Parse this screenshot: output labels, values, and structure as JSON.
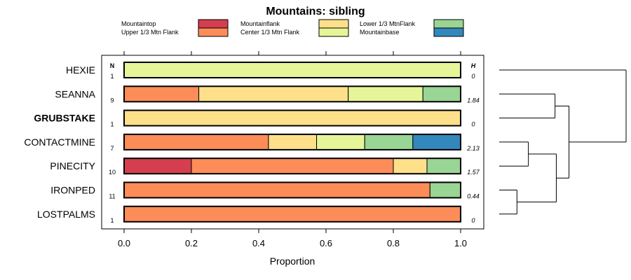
{
  "chart_data": {
    "type": "bar",
    "stacked": true,
    "orientation": "horizontal",
    "title": "Mountains: sibling",
    "xlabel": "Proportion",
    "ylabel": "",
    "xlim": [
      0,
      1
    ],
    "x_ticks": [
      "0.0",
      "0.2",
      "0.4",
      "0.6",
      "0.8",
      "1.0"
    ],
    "legend_position": "top",
    "legend_columns": [
      [
        "Mountaintop",
        "Upper 1/3 Mtn Flank"
      ],
      [
        "Mountainflank",
        "Center 1/3 Mtn Flank"
      ],
      [
        "Lower 1/3 MtnFlank",
        "Mountainbase"
      ]
    ],
    "series": [
      {
        "name": "Mountaintop",
        "color": "#d53e4f"
      },
      {
        "name": "Upper 1/3 Mtn Flank",
        "color": "#fc8d59"
      },
      {
        "name": "Mountainflank",
        "color": "#fee08b"
      },
      {
        "name": "Center 1/3 Mtn Flank",
        "color": "#e6f598"
      },
      {
        "name": "Lower 1/3 MtnFlank",
        "color": "#99d594"
      },
      {
        "name": "Mountainbase",
        "color": "#3288bd"
      }
    ],
    "n_header": "N",
    "h_header": "H",
    "categories": [
      {
        "label": "HEXIE",
        "bold": false,
        "n": "1",
        "h": "0",
        "values": [
          0,
          0,
          0,
          1,
          0,
          0
        ]
      },
      {
        "label": "SEANNA",
        "bold": false,
        "n": "9",
        "h": "1.84",
        "values": [
          0,
          0.222,
          0.444,
          0.222,
          0.112,
          0
        ]
      },
      {
        "label": "GRUBSTAKE",
        "bold": true,
        "n": "1",
        "h": "0",
        "values": [
          0,
          0,
          1,
          0,
          0,
          0
        ]
      },
      {
        "label": "CONTACTMINE",
        "bold": false,
        "n": "7",
        "h": "2.13",
        "values": [
          0,
          0.429,
          0.143,
          0.143,
          0.143,
          0.142
        ]
      },
      {
        "label": "PINECITY",
        "bold": false,
        "n": "10",
        "h": "1.57",
        "values": [
          0.2,
          0.6,
          0.1,
          0,
          0.1,
          0
        ]
      },
      {
        "label": "IRONPED",
        "bold": false,
        "n": "11",
        "h": "0.44",
        "values": [
          0,
          0.909,
          0,
          0,
          0.091,
          0
        ]
      },
      {
        "label": "LOSTPALMS",
        "bold": false,
        "n": "1",
        "h": "0",
        "values": [
          0,
          1,
          0,
          0,
          0,
          0
        ]
      }
    ],
    "dendrogram": {
      "leaf_order": [
        "HEXIE",
        "SEANNA",
        "GRUBSTAKE",
        "CONTACTMINE",
        "PINECITY",
        "IRONPED",
        "LOSTPALMS"
      ],
      "merges": [
        {
          "left": "IRONPED",
          "right": "LOSTPALMS",
          "height": 0.14
        },
        {
          "left": "CONTACTMINE",
          "right": "PINECITY",
          "height": 0.23
        },
        {
          "left": "SEANNA",
          "right": "GRUBSTAKE",
          "height": 0.44
        },
        {
          "left": "(CONTACTMINE,PINECITY)",
          "right": "(IRONPED,LOSTPALMS)",
          "height": 0.45
        },
        {
          "left": "(SEANNA,GRUBSTAKE)",
          "right": "((CONTACTMINE,PINECITY),(IRONPED,LOSTPALMS))",
          "height": 0.55
        },
        {
          "left": "HEXIE",
          "right": "(rest)",
          "height": 1.0
        }
      ]
    }
  }
}
